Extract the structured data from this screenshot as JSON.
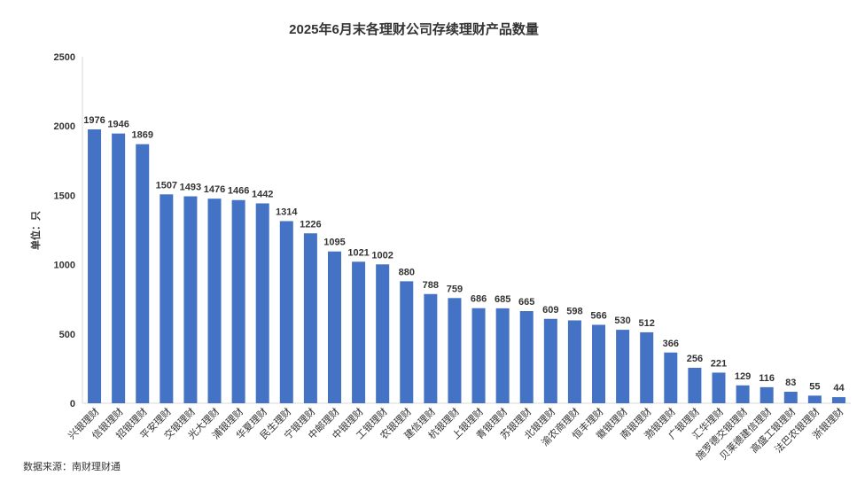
{
  "chart_data": {
    "type": "bar",
    "title": "2025年6月末各理财公司存续理财产品数量",
    "ylabel": "单位：只",
    "xlabel": "",
    "ylim": [
      0,
      2500
    ],
    "yticks": [
      0,
      500,
      1000,
      1500,
      2000,
      2500
    ],
    "grid": false,
    "bar_color": "#4472C4",
    "categories": [
      "兴银理财",
      "信银理财",
      "招银理财",
      "平安理财",
      "交银理财",
      "光大理财",
      "浦银理财",
      "华夏理财",
      "民生理财",
      "宁银理财",
      "中邮理财",
      "中银理财",
      "工银理财",
      "农银理财",
      "建信理财",
      "杭银理财",
      "上银理财",
      "青银理财",
      "苏银理财",
      "北银理财",
      "渝农商理财",
      "恒丰理财",
      "徽银理财",
      "南银理财",
      "渤银理财",
      "广银理财",
      "汇华理财",
      "施罗德交银理财",
      "贝莱德建信理财",
      "高盛工银理财",
      "法巴农银理财",
      "浙银理财"
    ],
    "values": [
      1976,
      1946,
      1869,
      1507,
      1493,
      1476,
      1466,
      1442,
      1314,
      1226,
      1095,
      1021,
      1002,
      880,
      788,
      759,
      686,
      685,
      665,
      609,
      598,
      566,
      530,
      512,
      366,
      256,
      221,
      129,
      116,
      83,
      55,
      44
    ],
    "source": "数据来源：南财理财通"
  }
}
